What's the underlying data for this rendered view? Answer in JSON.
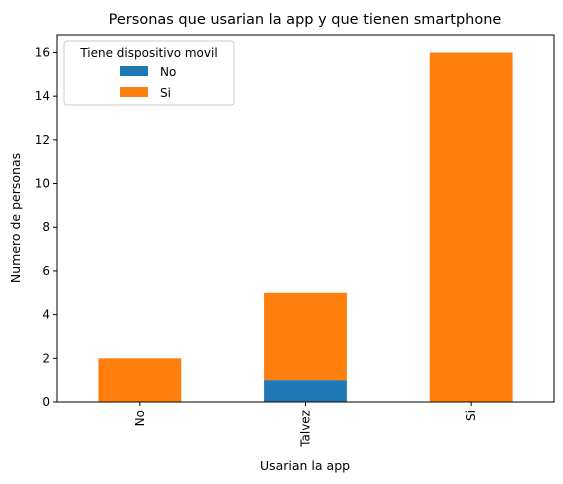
{
  "chart_data": {
    "type": "bar",
    "stacked": true,
    "title": "Personas que usarian la app y que tienen smartphone",
    "xlabel": "Usarian la app",
    "ylabel": "Numero de personas",
    "categories": [
      "No",
      "Talvez",
      "Si"
    ],
    "series": [
      {
        "name": "No",
        "values": [
          0,
          1,
          0
        ],
        "color": "#1f77b4"
      },
      {
        "name": "Si",
        "values": [
          2,
          4,
          16
        ],
        "color": "#ff7f0e"
      }
    ],
    "ylim": [
      0,
      16.8
    ],
    "yticks": [
      0,
      2,
      4,
      6,
      8,
      10,
      12,
      14,
      16
    ],
    "grid": false,
    "legend": {
      "title": "Tiene dispositivo movil",
      "position": "top-left"
    }
  }
}
